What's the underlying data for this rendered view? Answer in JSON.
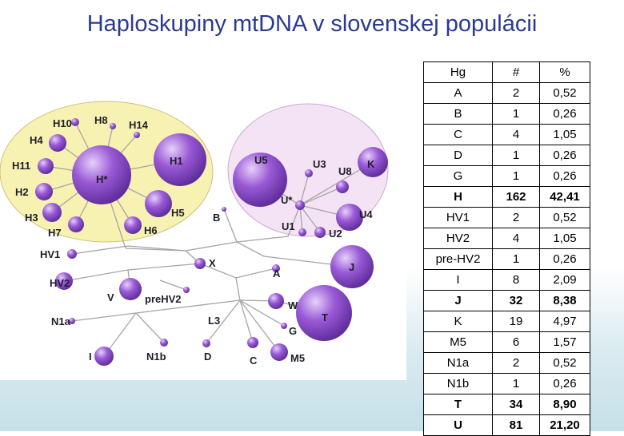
{
  "title": "Haploskupiny mtDNA v slovenskej populácii",
  "colors": {
    "title": "#2b3a8f",
    "node_fill": "#9a5ad6",
    "cluster_h": "#f7f2b2",
    "cluster_u": "#f4e3f4",
    "branch": "#a5a5a5"
  },
  "table": {
    "headers": [
      "Hg",
      "#",
      "%"
    ],
    "rows": [
      {
        "hg": "A",
        "count": "2",
        "pct": "0,52",
        "bold": false
      },
      {
        "hg": "B",
        "count": "1",
        "pct": "0,26",
        "bold": false
      },
      {
        "hg": "C",
        "count": "4",
        "pct": "1,05",
        "bold": false
      },
      {
        "hg": "D",
        "count": "1",
        "pct": "0,26",
        "bold": false
      },
      {
        "hg": "G",
        "count": "1",
        "pct": "0,26",
        "bold": false
      },
      {
        "hg": "H",
        "count": "162",
        "pct": "42,41",
        "bold": true
      },
      {
        "hg": "HV1",
        "count": "2",
        "pct": "0,52",
        "bold": false
      },
      {
        "hg": "HV2",
        "count": "4",
        "pct": "1,05",
        "bold": false
      },
      {
        "hg": "pre-HV2",
        "count": "1",
        "pct": "0,26",
        "bold": false
      },
      {
        "hg": "I",
        "count": "8",
        "pct": "2,09",
        "bold": false
      },
      {
        "hg": "J",
        "count": "32",
        "pct": "8,38",
        "bold": true
      },
      {
        "hg": "K",
        "count": "19",
        "pct": "4,97",
        "bold": false
      },
      {
        "hg": "M5",
        "count": "6",
        "pct": "1,57",
        "bold": false
      },
      {
        "hg": "N1a",
        "count": "2",
        "pct": "0,52",
        "bold": false
      },
      {
        "hg": "N1b",
        "count": "1",
        "pct": "0,26",
        "bold": false
      },
      {
        "hg": "T",
        "count": "34",
        "pct": "8,90",
        "bold": true
      },
      {
        "hg": "U",
        "count": "81",
        "pct": "21,20",
        "bold": true
      }
    ]
  },
  "diagram_labels": {
    "h_star": "H*",
    "h1": "H1",
    "h2": "H2",
    "h3": "H3",
    "h4": "H4",
    "h5": "H5",
    "h6": "H6",
    "h7": "H7",
    "h8": "H8",
    "h10": "H10",
    "h11": "H11",
    "h14": "H14",
    "u5": "U5",
    "u3": "U3",
    "u8": "U8",
    "k": "K",
    "u_star": "U*",
    "u4": "U4",
    "u1": "U1",
    "u2": "U2",
    "b": "B",
    "x": "X",
    "a": "A",
    "j": "J",
    "hv1": "HV1",
    "hv2": "HV2",
    "v": "V",
    "prehv2": "preHV2",
    "w": "W",
    "t": "T",
    "l3": "L3",
    "g": "G",
    "n1a": "N1a",
    "i": "I",
    "n1b": "N1b",
    "d": "D",
    "c": "C",
    "m5": "M5"
  }
}
